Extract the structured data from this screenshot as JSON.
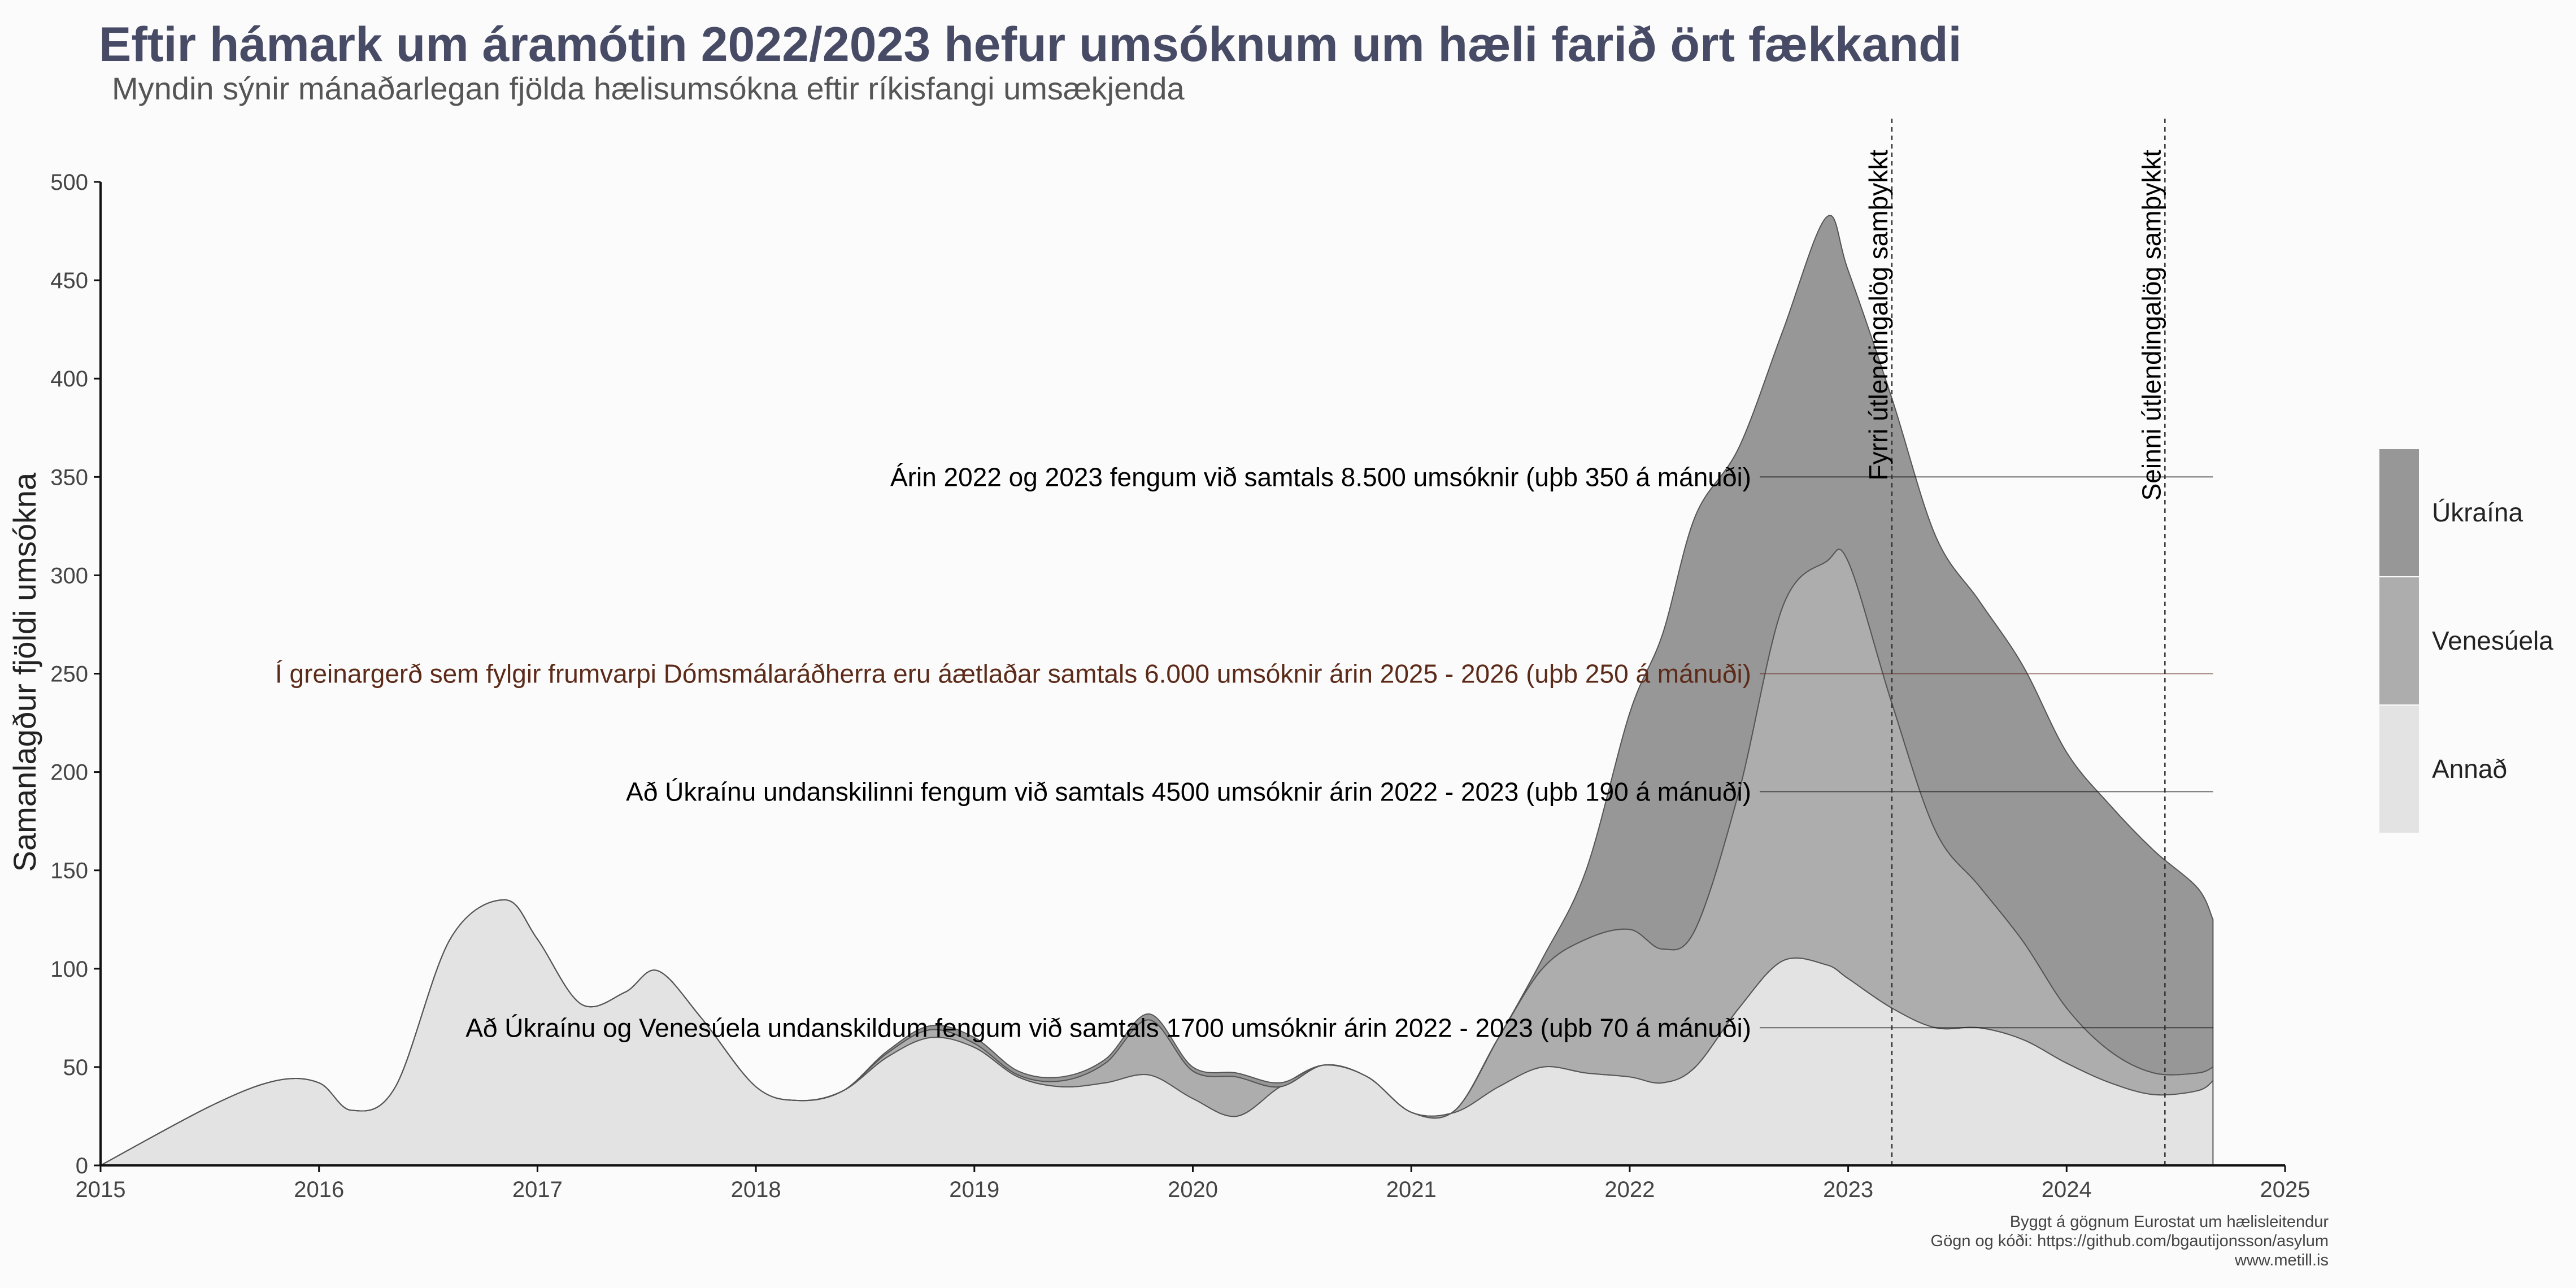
{
  "title": "Eftir hámark um áramótin 2022/2023 hefur umsóknum um hæli farið ört fækkandi",
  "subtitle": "Myndin sýnir mánaðarlegan fjölda hælisumsókna eftir ríkisfangi umsækjenda",
  "caption": [
    "Byggt á gögnum Eurostat um hælisleitendur",
    "Gögn og kóði:  https://github.com/bgautijonsson/asylum",
    "www.metill.is"
  ],
  "chart_data": {
    "type": "area",
    "stacked": true,
    "ylabel": "Samanlagður fjöldi umsókna",
    "xlabel": "",
    "xlim": [
      2015,
      2025
    ],
    "ylim": [
      0,
      500
    ],
    "x_ticks": [
      "2015",
      "2016",
      "2017",
      "2018",
      "2019",
      "2020",
      "2021",
      "2022",
      "2023",
      "2024",
      "2025"
    ],
    "y_ticks": [
      "0",
      "50",
      "100",
      "150",
      "200",
      "250",
      "300",
      "350",
      "400",
      "450",
      "500"
    ],
    "legend_position": "right",
    "x": [
      2015.0,
      2015.5,
      2015.8,
      2016.0,
      2016.15,
      2016.35,
      2016.6,
      2016.85,
      2017.0,
      2017.2,
      2017.4,
      2017.55,
      2017.75,
      2018.0,
      2018.2,
      2018.4,
      2018.6,
      2018.8,
      2019.0,
      2019.2,
      2019.4,
      2019.6,
      2019.8,
      2020.0,
      2020.2,
      2020.4,
      2020.6,
      2020.8,
      2021.0,
      2021.2,
      2021.4,
      2021.6,
      2021.8,
      2022.0,
      2022.15,
      2022.3,
      2022.5,
      2022.7,
      2022.9,
      2023.0,
      2023.2,
      2023.4,
      2023.6,
      2023.8,
      2024.0,
      2024.2,
      2024.4,
      2024.6,
      2024.67
    ],
    "series": [
      {
        "name": "Annað",
        "color": "#e3e3e3",
        "values": [
          0,
          30,
          43,
          42,
          28,
          40,
          115,
          135,
          115,
          82,
          88,
          99,
          75,
          40,
          33,
          38,
          55,
          65,
          60,
          45,
          40,
          42,
          46,
          34,
          25,
          40,
          51,
          45,
          27,
          27,
          40,
          50,
          47,
          45,
          42,
          50,
          80,
          104,
          102,
          95,
          80,
          70,
          70,
          64,
          52,
          42,
          36,
          38,
          43
        ]
      },
      {
        "name": "Venesúela",
        "color": "#adadad",
        "values": [
          0,
          0,
          0,
          0,
          0,
          0,
          0,
          0,
          0,
          0,
          0,
          0,
          0,
          0,
          0,
          0,
          2,
          4,
          2,
          1,
          3,
          10,
          28,
          14,
          20,
          0,
          0,
          0,
          0,
          1,
          25,
          50,
          68,
          75,
          68,
          70,
          110,
          180,
          205,
          212,
          155,
          100,
          72,
          50,
          28,
          16,
          11,
          9,
          7
        ]
      },
      {
        "name": "Úkraína",
        "color": "#979797",
        "values": [
          0,
          0,
          0,
          0,
          0,
          0,
          0,
          0,
          0,
          0,
          0,
          0,
          0,
          0,
          0,
          0,
          1,
          2,
          3,
          2,
          2,
          2,
          3,
          2,
          2,
          2,
          0,
          0,
          0,
          0,
          0,
          5,
          35,
          110,
          160,
          210,
          175,
          140,
          175,
          148,
          155,
          150,
          145,
          140,
          130,
          125,
          113,
          94,
          75
        ]
      }
    ],
    "reference_lines": [
      {
        "y": 350,
        "label": "Árin 2022 og 2023 fengum við samtals 8.500 umsóknir (uþb 350 á mánuði)",
        "color": "#000000"
      },
      {
        "y": 250,
        "label": "Í greinargerð sem fylgir frumvarpi Dómsmálaráðherra eru áætlaðar samtals 6.000 umsóknir árin 2025 - 2026 (uþb 250 á mánuði)",
        "color": "#5c2a18"
      },
      {
        "y": 190,
        "label": "Að Úkraínu undanskilinni fengum við samtals 4500 umsóknir árin 2022 - 2023 (uþb 190 á mánuði)",
        "color": "#000000"
      },
      {
        "y": 70,
        "label": "Að Úkraínu og Venesúela undanskildum fengum við samtals 1700 umsóknir árin 2022 - 2023 (uþb 70 á mánuði)",
        "color": "#000000"
      }
    ],
    "vertical_events": [
      {
        "x": 2023.2,
        "label": "Fyrri útlendingalög samþykkt"
      },
      {
        "x": 2024.45,
        "label": "Seinni útlendingalög samþykkt"
      }
    ]
  }
}
